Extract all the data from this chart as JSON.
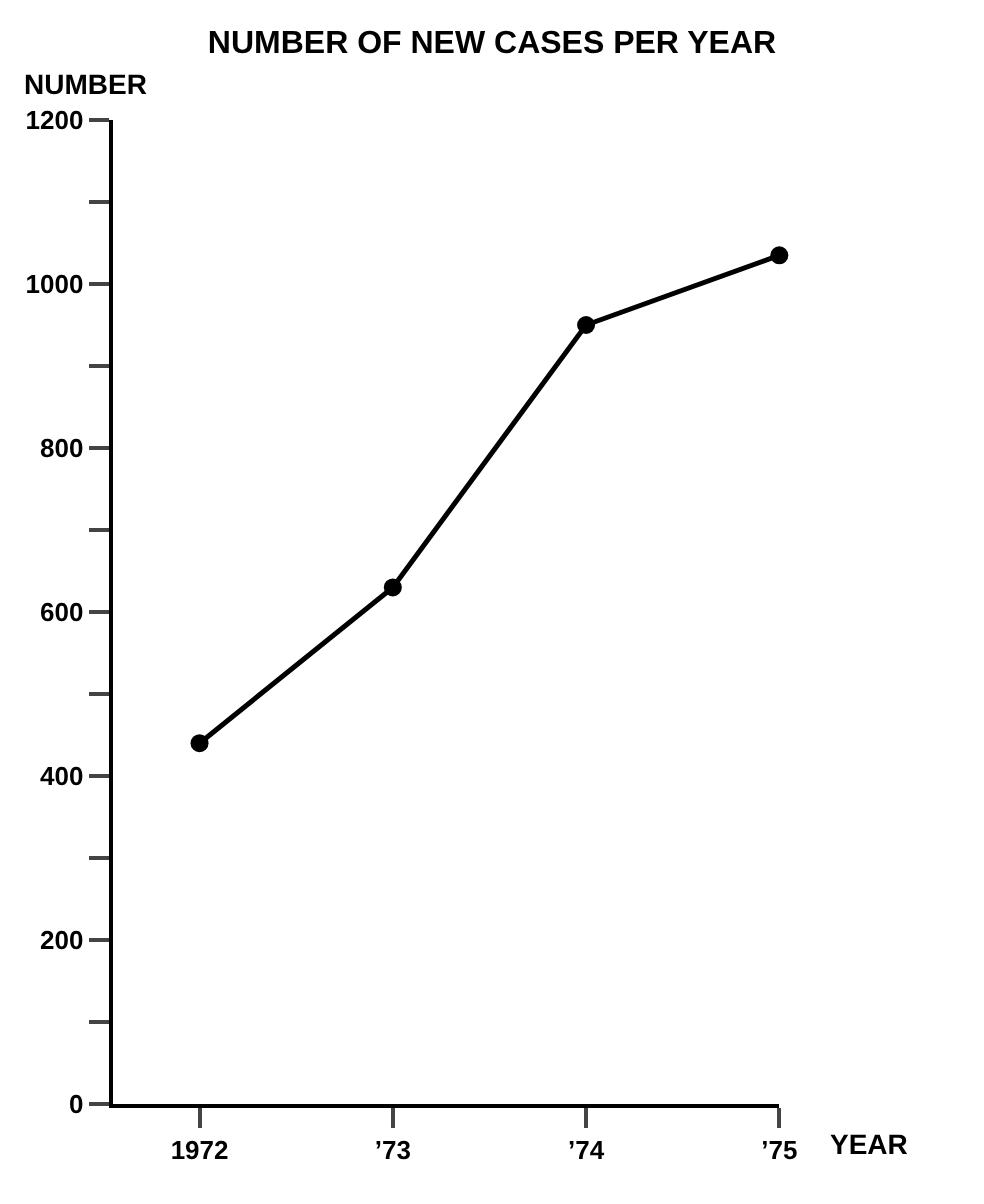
{
  "chart_data": {
    "type": "line",
    "title": "NUMBER OF NEW CASES PER YEAR",
    "xlabel": "YEAR",
    "ylabel": "NUMBER",
    "categories": [
      "1972",
      "’73",
      "’74",
      "’75"
    ],
    "series": [
      {
        "color": "#000000",
        "values": [
          440,
          630,
          950,
          1035
        ]
      }
    ],
    "ylim": [
      0,
      1200
    ],
    "yticks": [
      0,
      {
        "value": 100,
        "label": null
      },
      200,
      {
        "value": 300,
        "label": null
      },
      400,
      {
        "value": 500,
        "label": null
      },
      600,
      {
        "value": 700,
        "label": null
      },
      800,
      {
        "value": 900,
        "label": null
      },
      1000,
      {
        "value": 1100,
        "label": null
      },
      1200
    ],
    "marker": "circle",
    "line_style": "solid"
  }
}
